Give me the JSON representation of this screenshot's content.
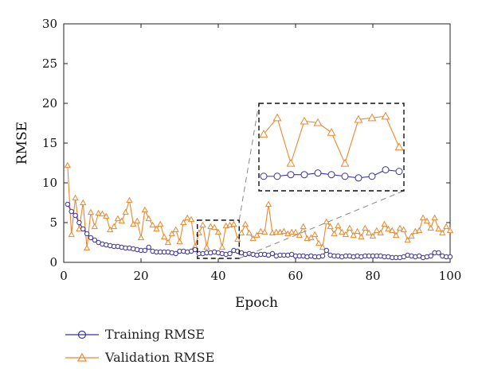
{
  "chart_data": {
    "type": "line",
    "title": "",
    "xlabel": "Epoch",
    "ylabel": "RMSE",
    "xlim": [
      0,
      100
    ],
    "ylim": [
      0,
      30
    ],
    "xticks": [
      0,
      20,
      40,
      60,
      80,
      100
    ],
    "yticks": [
      0,
      5,
      10,
      15,
      20,
      25,
      30
    ],
    "grid": false,
    "legend_placement": "bottom-left, outside plot",
    "series": [
      {
        "name": "Training RMSE",
        "color": "#3a3397",
        "marker": "circle",
        "x": [
          1,
          2,
          3,
          4,
          5,
          6,
          7,
          8,
          9,
          10,
          11,
          12,
          13,
          14,
          15,
          16,
          17,
          18,
          19,
          20,
          21,
          22,
          23,
          24,
          25,
          26,
          27,
          28,
          29,
          30,
          31,
          32,
          33,
          34,
          35,
          36,
          37,
          38,
          39,
          40,
          41,
          42,
          43,
          44,
          45,
          46,
          47,
          48,
          49,
          50,
          51,
          52,
          53,
          54,
          55,
          56,
          57,
          58,
          59,
          60,
          61,
          62,
          63,
          64,
          65,
          66,
          67,
          68,
          69,
          70,
          71,
          72,
          73,
          74,
          75,
          76,
          77,
          78,
          79,
          80,
          81,
          82,
          83,
          84,
          85,
          86,
          87,
          88,
          89,
          90,
          91,
          92,
          93,
          94,
          95,
          96,
          97,
          98,
          99,
          100
        ],
        "values": [
          7.3,
          6.4,
          5.9,
          5.0,
          4.2,
          3.6,
          3.1,
          2.8,
          2.5,
          2.3,
          2.2,
          2.1,
          2.0,
          2.0,
          1.9,
          1.8,
          1.8,
          1.7,
          1.6,
          1.5,
          1.5,
          1.9,
          1.4,
          1.3,
          1.3,
          1.3,
          1.3,
          1.2,
          1.1,
          1.4,
          1.4,
          1.3,
          1.4,
          1.6,
          1.1,
          1.1,
          1.2,
          1.2,
          1.3,
          1.2,
          1.1,
          1.0,
          1.1,
          1.5,
          1.4,
          1.2,
          1.0,
          1.1,
          1.0,
          0.9,
          1.0,
          1.0,
          0.9,
          1.1,
          0.8,
          0.9,
          0.9,
          0.9,
          1.0,
          0.8,
          0.8,
          0.8,
          0.7,
          0.8,
          0.7,
          0.7,
          0.8,
          1.5,
          0.9,
          0.8,
          0.8,
          0.7,
          0.8,
          0.8,
          0.7,
          0.8,
          0.7,
          0.8,
          0.8,
          0.8,
          0.8,
          0.8,
          0.7,
          0.7,
          0.6,
          0.6,
          0.6,
          0.7,
          0.9,
          0.8,
          0.7,
          0.8,
          0.6,
          0.7,
          0.8,
          1.2,
          1.2,
          0.8,
          0.7,
          0.7
        ]
      },
      {
        "name": "Validation RMSE",
        "color": "#e8892f",
        "marker": "triangle",
        "x": [
          1,
          2,
          3,
          4,
          5,
          6,
          7,
          8,
          9,
          10,
          11,
          12,
          13,
          14,
          15,
          16,
          17,
          18,
          19,
          20,
          21,
          22,
          23,
          24,
          25,
          26,
          27,
          28,
          29,
          30,
          31,
          32,
          33,
          34,
          35,
          36,
          37,
          38,
          39,
          40,
          41,
          42,
          43,
          44,
          45,
          46,
          47,
          48,
          49,
          50,
          51,
          52,
          53,
          54,
          55,
          56,
          57,
          58,
          59,
          60,
          61,
          62,
          63,
          64,
          65,
          66,
          67,
          68,
          69,
          70,
          71,
          72,
          73,
          74,
          75,
          76,
          77,
          78,
          79,
          80,
          81,
          82,
          83,
          84,
          85,
          86,
          87,
          88,
          89,
          90,
          91,
          92,
          93,
          94,
          95,
          96,
          97,
          98,
          99,
          100
        ],
        "values": [
          12.2,
          3.5,
          8.1,
          4.2,
          7.5,
          1.8,
          6.3,
          4.5,
          6.2,
          6.1,
          5.8,
          4.1,
          4.5,
          5.5,
          5.2,
          6.3,
          7.8,
          4.8,
          5.2,
          3.1,
          6.6,
          5.5,
          4.7,
          4.2,
          4.8,
          3.2,
          2.5,
          3.6,
          4.1,
          2.6,
          5.0,
          5.6,
          5.4,
          2.0,
          3.7,
          4.7,
          1.9,
          4.5,
          4.4,
          3.8,
          1.9,
          4.6,
          4.7,
          4.8,
          2.9,
          3.7,
          4.8,
          3.7,
          3.0,
          3.4,
          3.9,
          3.8,
          7.3,
          3.7,
          3.8,
          3.8,
          3.9,
          3.6,
          3.8,
          3.8,
          3.4,
          4.5,
          3.0,
          3.1,
          3.5,
          2.4,
          1.9,
          5.1,
          4.5,
          3.6,
          4.6,
          3.8,
          3.5,
          4.3,
          3.4,
          3.9,
          3.2,
          4.3,
          3.7,
          3.3,
          4.0,
          3.7,
          4.8,
          4.2,
          4.0,
          3.4,
          4.3,
          4.1,
          2.8,
          3.3,
          3.9,
          4.0,
          5.6,
          5.2,
          4.3,
          5.6,
          4.2,
          3.7,
          4.5,
          4.0
        ]
      }
    ],
    "inset": {
      "description": "zoomed view of epochs 35 to 45",
      "x_range": [
        35,
        45
      ],
      "y_range": [
        0.5,
        5.3
      ],
      "border": "dashed",
      "series_note": "same series, magnified"
    }
  }
}
